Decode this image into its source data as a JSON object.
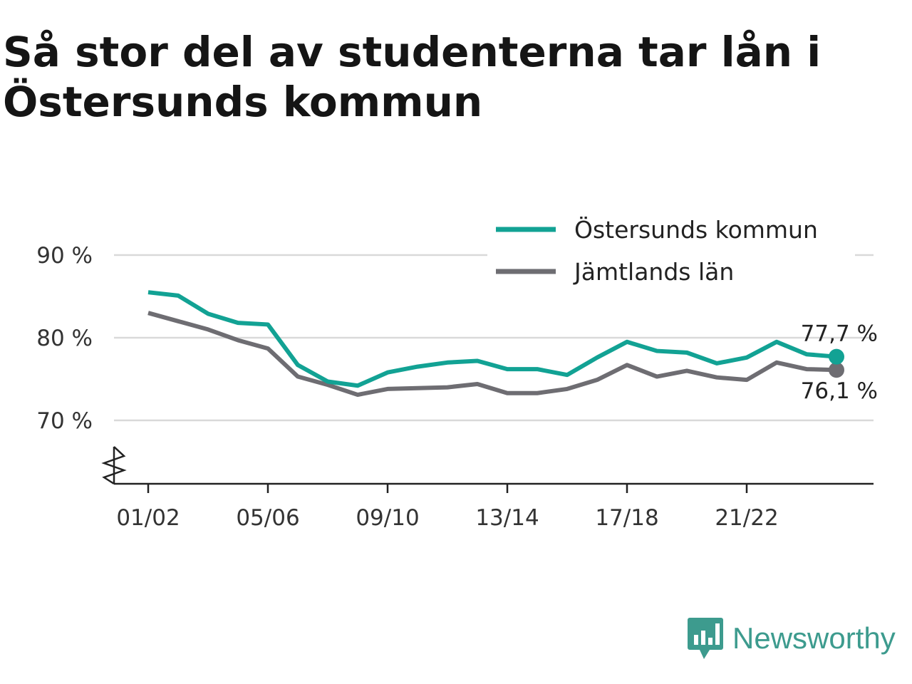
{
  "title": "Så stor del av studenterna tar lån i Östersunds kommun",
  "brand": {
    "name": "Newsworthy",
    "icon": "newsworthy-logo-icon",
    "color": "#3d9b8e"
  },
  "chart_data": {
    "type": "line",
    "x": [
      "01/02",
      "02/03",
      "03/04",
      "04/05",
      "05/06",
      "06/07",
      "07/08",
      "08/09",
      "09/10",
      "10/11",
      "11/12",
      "12/13",
      "13/14",
      "14/15",
      "15/16",
      "16/17",
      "17/18",
      "18/19",
      "19/20",
      "20/21",
      "21/22",
      "22/23",
      "23/24",
      "24/25"
    ],
    "tick_labels": [
      "01/02",
      "05/06",
      "09/10",
      "13/14",
      "17/18",
      "21/22"
    ],
    "y_ticks": [
      {
        "value": 70,
        "label": "70 %"
      },
      {
        "value": 80,
        "label": "80 %"
      },
      {
        "value": 90,
        "label": "90 %"
      }
    ],
    "ylim": [
      62,
      91
    ],
    "y_axis_break": true,
    "grid": true,
    "legend_position": "top-right",
    "series": [
      {
        "name": "Östersunds kommun",
        "color": "#12a294",
        "end_label": "77,7 %",
        "values": [
          85.5,
          85.1,
          82.9,
          81.8,
          81.6,
          76.7,
          74.7,
          74.2,
          75.8,
          76.5,
          77.0,
          77.2,
          76.2,
          76.2,
          75.5,
          77.6,
          79.5,
          78.4,
          78.2,
          76.9,
          77.6,
          79.5,
          78.0,
          77.7
        ]
      },
      {
        "name": "Jämtlands län",
        "color": "#6e6d72",
        "end_label": "76,1 %",
        "values": [
          83.0,
          82.0,
          81.0,
          79.7,
          78.7,
          75.3,
          74.3,
          73.1,
          73.8,
          73.9,
          74.0,
          74.4,
          73.3,
          73.3,
          73.8,
          74.9,
          76.7,
          75.3,
          76.0,
          75.2,
          74.9,
          77.0,
          76.2,
          76.1
        ]
      }
    ]
  }
}
